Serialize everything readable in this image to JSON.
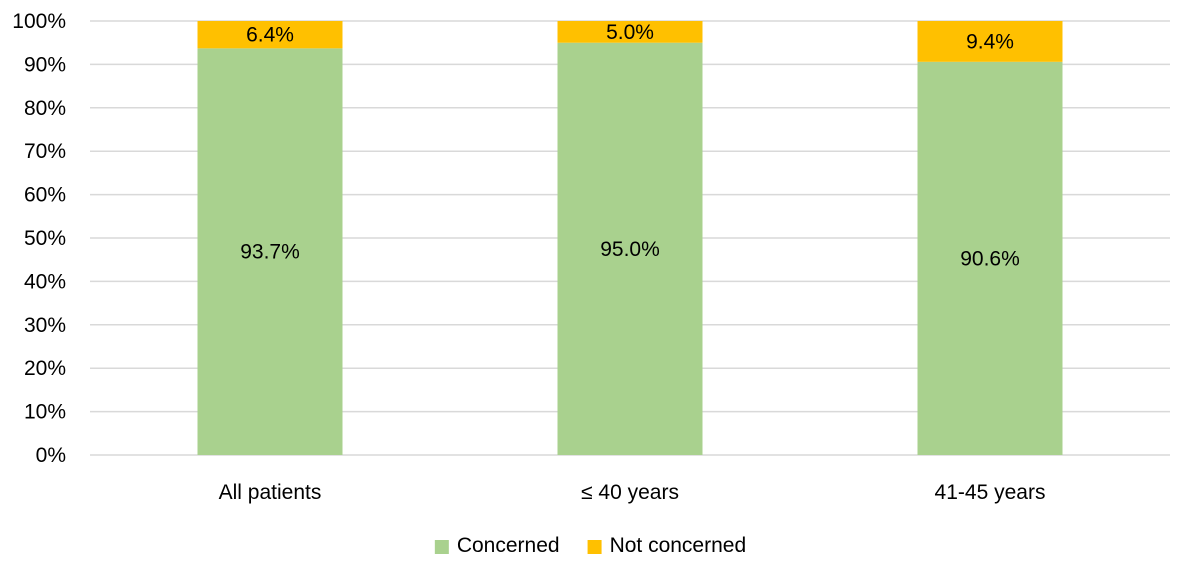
{
  "chart_data": {
    "type": "bar",
    "stacked": true,
    "percent_stacked": true,
    "categories": [
      "All patients",
      "≤ 40 years",
      "41-45 years"
    ],
    "series": [
      {
        "name": "Concerned",
        "color": "#a9d18e",
        "values": [
          93.7,
          95.0,
          90.6
        ],
        "labels": [
          "93.7%",
          "95.0%",
          "90.6%"
        ]
      },
      {
        "name": "Not concerned",
        "color": "#ffc000",
        "values": [
          6.4,
          5.0,
          9.4
        ],
        "labels": [
          "6.4%",
          "5.0%",
          "9.4%"
        ]
      }
    ],
    "ylim": [
      0,
      100
    ],
    "yticks": [
      0,
      10,
      20,
      30,
      40,
      50,
      60,
      70,
      80,
      90,
      100
    ],
    "ytick_labels": [
      "0%",
      "10%",
      "20%",
      "30%",
      "40%",
      "50%",
      "60%",
      "70%",
      "80%",
      "90%",
      "100%"
    ],
    "grid": true,
    "legend_position": "bottom",
    "title": "",
    "xlabel": "",
    "ylabel": ""
  },
  "colors": {
    "grid": "#d9d9d9",
    "text": "#000000",
    "background": "#ffffff"
  }
}
